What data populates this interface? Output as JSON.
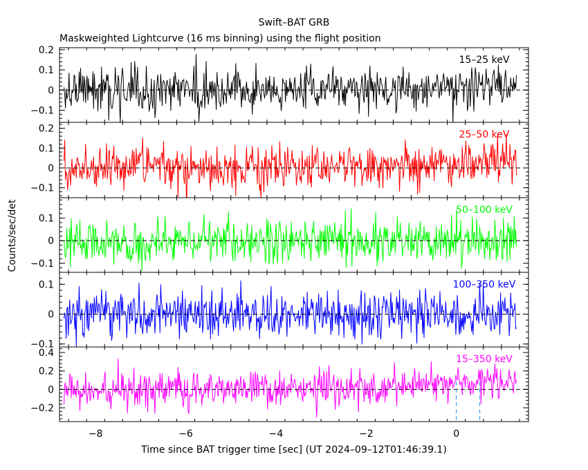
{
  "chart_data": {
    "type": "line",
    "title": "Swift–BAT GRB",
    "subtitle": "Maskweighted Lightcurve (16 ms binning) using the flight position",
    "xlabel": "Time since BAT trigger time [sec] (UT 2024–09–12T01:46:39.1)",
    "ylabel": "Counts/sec/det",
    "xlim": [
      -8.8,
      1.6
    ],
    "x_ticks": [
      -8,
      -6,
      -4,
      -2,
      0
    ],
    "x_tick_labels": [
      "−8",
      "−6",
      "−4",
      "−2",
      "0"
    ],
    "bin_seconds": 0.016,
    "t_start": -8.7,
    "t_end": 1.35,
    "markers": [
      0,
      0.52
    ],
    "panels": [
      {
        "name": "15–25 keV",
        "color": "#000000",
        "ylim": [
          -0.16,
          0.21
        ],
        "y_ticks": [
          -0.1,
          0,
          0.1,
          0.2
        ],
        "y_tick_labels": [
          "−0.1",
          "0",
          "0.1",
          "0.2"
        ],
        "noise_sigma": 0.055,
        "trend": [
          [
            -8.7,
            0.0
          ],
          [
            -3.0,
            0.0
          ],
          [
            -1.0,
            0.01
          ],
          [
            1.35,
            0.03
          ]
        ]
      },
      {
        "name": "25–50 keV",
        "color": "#ff0000",
        "ylim": [
          -0.15,
          0.23
        ],
        "y_ticks": [
          -0.1,
          0,
          0.1,
          0.2
        ],
        "y_tick_labels": [
          "−0.1",
          "0",
          "0.1",
          "0.2"
        ],
        "noise_sigma": 0.055,
        "trend": [
          [
            -8.7,
            0.0
          ],
          [
            -3.0,
            0.0
          ],
          [
            -1.0,
            0.015
          ],
          [
            1.35,
            0.03
          ]
        ]
      },
      {
        "name": "50–100 keV",
        "color": "#00ff00",
        "ylim": [
          -0.14,
          0.19
        ],
        "y_ticks": [
          -0.1,
          0,
          0.1
        ],
        "y_tick_labels": [
          "−0.1",
          "0",
          "0.1"
        ],
        "noise_sigma": 0.05,
        "trend": [
          [
            -8.7,
            0.0
          ],
          [
            1.35,
            0.0
          ]
        ]
      },
      {
        "name": "100–350 keV",
        "color": "#0000ff",
        "ylim": [
          -0.11,
          0.14
        ],
        "y_ticks": [
          -0.1,
          0,
          0.1
        ],
        "y_tick_labels": [
          "−0.1",
          "0",
          "0.1"
        ],
        "noise_sigma": 0.04,
        "trend": [
          [
            -8.7,
            0.0
          ],
          [
            1.35,
            0.0
          ]
        ]
      },
      {
        "name": "15–350 keV",
        "color": "#ff00ff",
        "ylim": [
          -0.35,
          0.46
        ],
        "y_ticks": [
          -0.2,
          0,
          0.2,
          0.4
        ],
        "y_tick_labels": [
          "−0.2",
          "0",
          "0.2",
          "0.4"
        ],
        "noise_sigma": 0.1,
        "trend": [
          [
            -8.7,
            0.0
          ],
          [
            -3.0,
            0.0
          ],
          [
            -1.0,
            0.04
          ],
          [
            0.0,
            0.08
          ],
          [
            1.35,
            0.1
          ]
        ]
      }
    ]
  }
}
